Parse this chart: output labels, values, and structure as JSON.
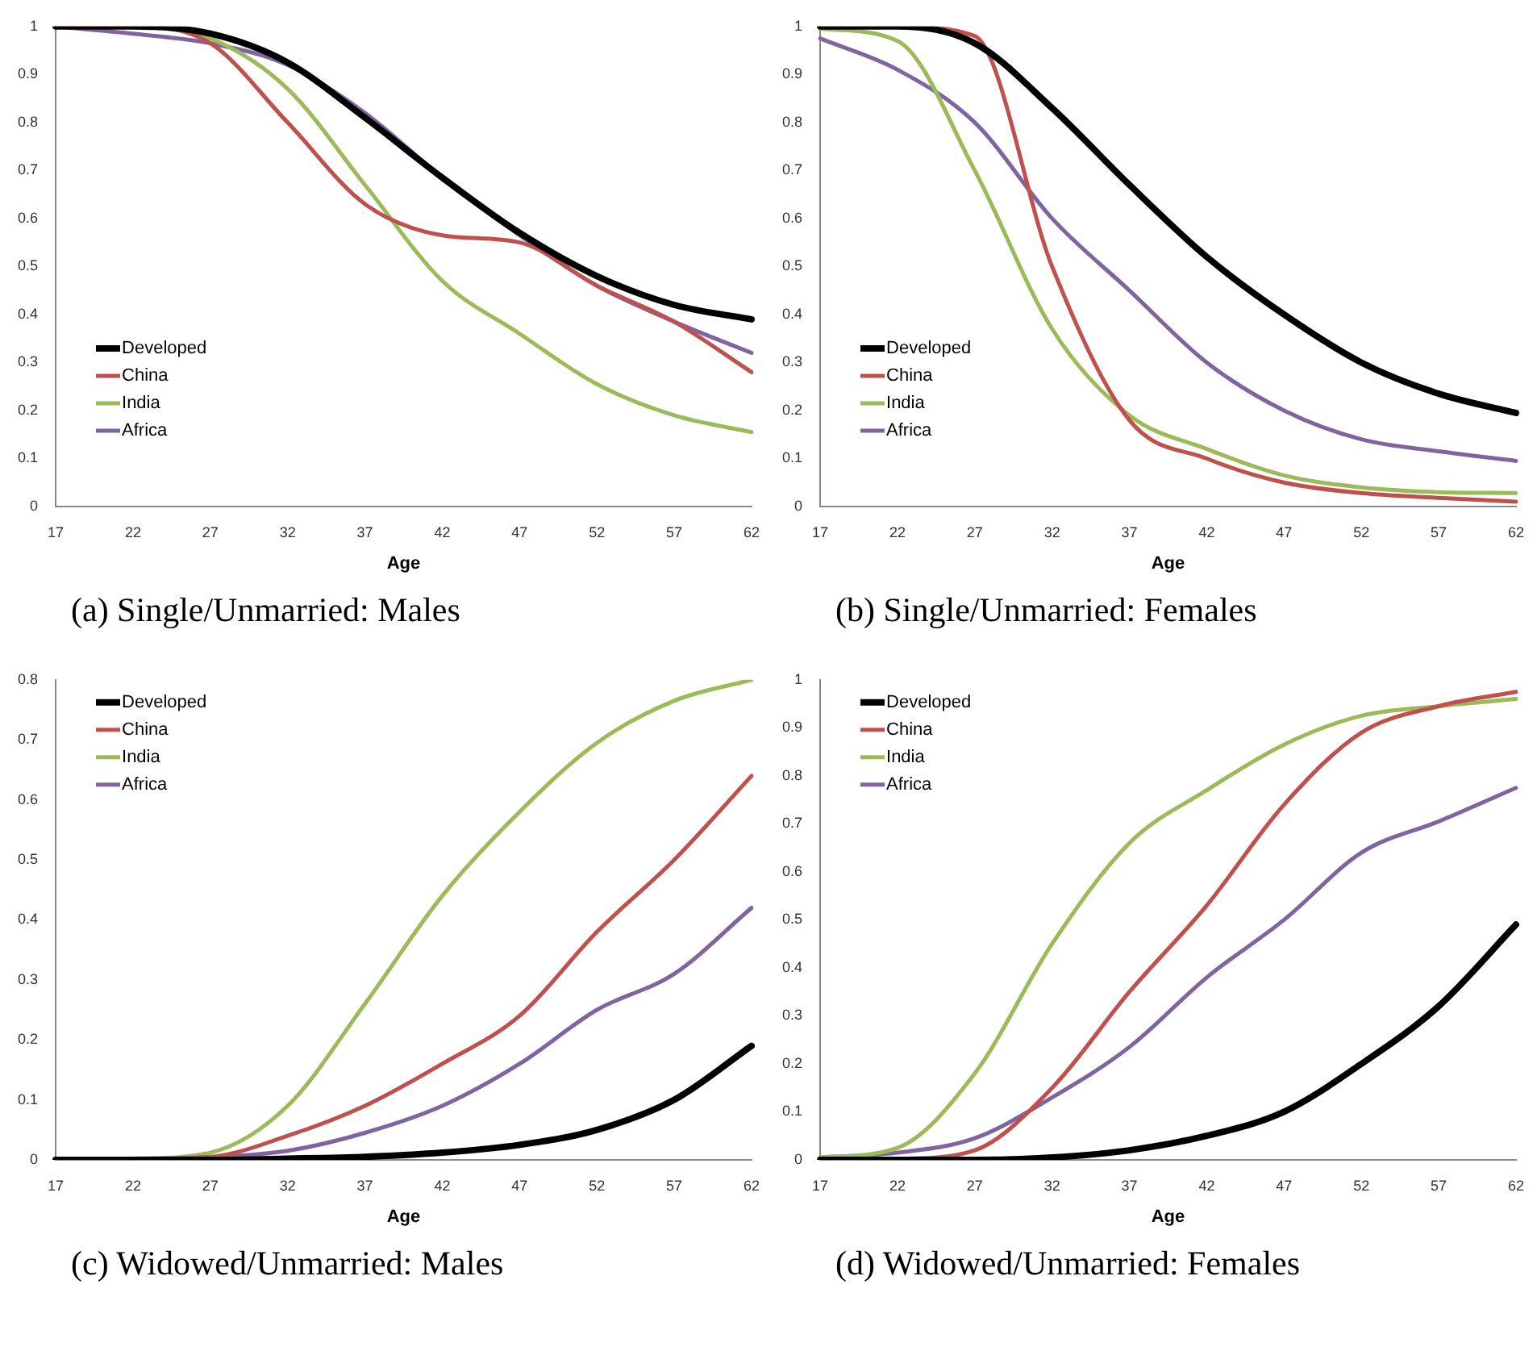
{
  "chart_data": [
    {
      "type": "line",
      "title": "(a) Single/Unmarried: Males",
      "xlabel": "Age",
      "categories": [
        "17",
        "22",
        "27",
        "32",
        "37",
        "42",
        "47",
        "52",
        "57",
        "62"
      ],
      "ylim": [
        0,
        1
      ],
      "yticks": [
        0,
        0.1,
        0.2,
        0.3,
        0.4,
        0.5,
        0.6,
        0.7,
        0.8,
        0.9,
        1
      ],
      "grid": false,
      "legend": "bottom left",
      "marker": "none",
      "line_style": "solid",
      "series": [
        {
          "name": "Developed",
          "color": "#000000",
          "values": [
            1,
            1,
            0.985,
            0.925,
            0.81,
            0.685,
            0.57,
            0.48,
            0.42,
            0.39
          ]
        },
        {
          "name": "China",
          "color": "#c0504d",
          "values": [
            1,
            1,
            0.965,
            0.8,
            0.63,
            0.565,
            0.55,
            0.46,
            0.385,
            0.28
          ]
        },
        {
          "name": "India",
          "color": "#9bbb59",
          "values": [
            1,
            1,
            0.975,
            0.87,
            0.67,
            0.47,
            0.36,
            0.255,
            0.19,
            0.155
          ]
        },
        {
          "name": "Africa",
          "color": "#8064a2",
          "values": [
            1,
            0.985,
            0.965,
            0.92,
            0.82,
            0.685,
            0.565,
            0.46,
            0.385,
            0.32
          ]
        }
      ]
    },
    {
      "type": "line",
      "title": "(b) Single/Unmarried: Females",
      "xlabel": "Age",
      "categories": [
        "17",
        "22",
        "27",
        "32",
        "37",
        "42",
        "47",
        "52",
        "57",
        "62"
      ],
      "ylim": [
        0,
        1
      ],
      "yticks": [
        0,
        0.1,
        0.2,
        0.3,
        0.4,
        0.5,
        0.6,
        0.7,
        0.8,
        0.9,
        1
      ],
      "grid": false,
      "legend": "bottom left",
      "marker": "none",
      "line_style": "solid",
      "series": [
        {
          "name": "Developed",
          "color": "#000000",
          "values": [
            1,
            1,
            0.965,
            0.83,
            0.67,
            0.52,
            0.4,
            0.3,
            0.235,
            0.195
          ]
        },
        {
          "name": "China",
          "color": "#c0504d",
          "values": [
            1,
            1,
            0.98,
            0.5,
            0.18,
            0.1,
            0.05,
            0.028,
            0.018,
            0.01
          ]
        },
        {
          "name": "India",
          "color": "#9bbb59",
          "values": [
            0.995,
            0.97,
            0.7,
            0.37,
            0.19,
            0.12,
            0.065,
            0.04,
            0.03,
            0.028
          ]
        },
        {
          "name": "Africa",
          "color": "#8064a2",
          "values": [
            0.975,
            0.91,
            0.8,
            0.6,
            0.45,
            0.3,
            0.2,
            0.14,
            0.115,
            0.095
          ]
        }
      ]
    },
    {
      "type": "line",
      "title": "(c) Widowed/Unmarried: Males",
      "xlabel": "Age",
      "categories": [
        "17",
        "22",
        "27",
        "32",
        "37",
        "42",
        "47",
        "52",
        "57",
        "62"
      ],
      "ylim": [
        0,
        0.8
      ],
      "yticks": [
        0,
        0.1,
        0.2,
        0.3,
        0.4,
        0.5,
        0.6,
        0.7,
        0.8
      ],
      "grid": false,
      "legend": "top left",
      "marker": "none",
      "line_style": "solid",
      "series": [
        {
          "name": "Developed",
          "color": "#000000",
          "values": [
            0,
            0,
            0,
            0.002,
            0.005,
            0.012,
            0.025,
            0.05,
            0.1,
            0.19
          ]
        },
        {
          "name": "China",
          "color": "#c0504d",
          "values": [
            0,
            0.002,
            0.005,
            0.04,
            0.09,
            0.16,
            0.24,
            0.38,
            0.5,
            0.64
          ]
        },
        {
          "name": "India",
          "color": "#9bbb59",
          "values": [
            0,
            0.002,
            0.012,
            0.09,
            0.26,
            0.44,
            0.58,
            0.695,
            0.765,
            0.8
          ]
        },
        {
          "name": "Africa",
          "color": "#8064a2",
          "values": [
            0,
            0,
            0.004,
            0.015,
            0.045,
            0.09,
            0.16,
            0.25,
            0.31,
            0.42
          ]
        }
      ]
    },
    {
      "type": "line",
      "title": "(d) Widowed/Unmarried: Females",
      "xlabel": "Age",
      "categories": [
        "17",
        "22",
        "27",
        "32",
        "37",
        "42",
        "47",
        "52",
        "57",
        "62"
      ],
      "ylim": [
        0,
        1
      ],
      "yticks": [
        0,
        0.1,
        0.2,
        0.3,
        0.4,
        0.5,
        0.6,
        0.7,
        0.8,
        0.9,
        1
      ],
      "grid": false,
      "legend": "top left",
      "marker": "none",
      "line_style": "solid",
      "series": [
        {
          "name": "Developed",
          "color": "#000000",
          "values": [
            0,
            0,
            0,
            0.005,
            0.02,
            0.05,
            0.1,
            0.2,
            0.32,
            0.49
          ]
        },
        {
          "name": "China",
          "color": "#c0504d",
          "values": [
            0,
            0.002,
            0.02,
            0.15,
            0.35,
            0.53,
            0.74,
            0.89,
            0.945,
            0.975
          ]
        },
        {
          "name": "India",
          "color": "#9bbb59",
          "values": [
            0.005,
            0.025,
            0.18,
            0.45,
            0.66,
            0.77,
            0.865,
            0.925,
            0.945,
            0.96
          ]
        },
        {
          "name": "Africa",
          "color": "#8064a2",
          "values": [
            0.005,
            0.015,
            0.045,
            0.13,
            0.235,
            0.38,
            0.5,
            0.64,
            0.705,
            0.775
          ]
        }
      ]
    }
  ]
}
